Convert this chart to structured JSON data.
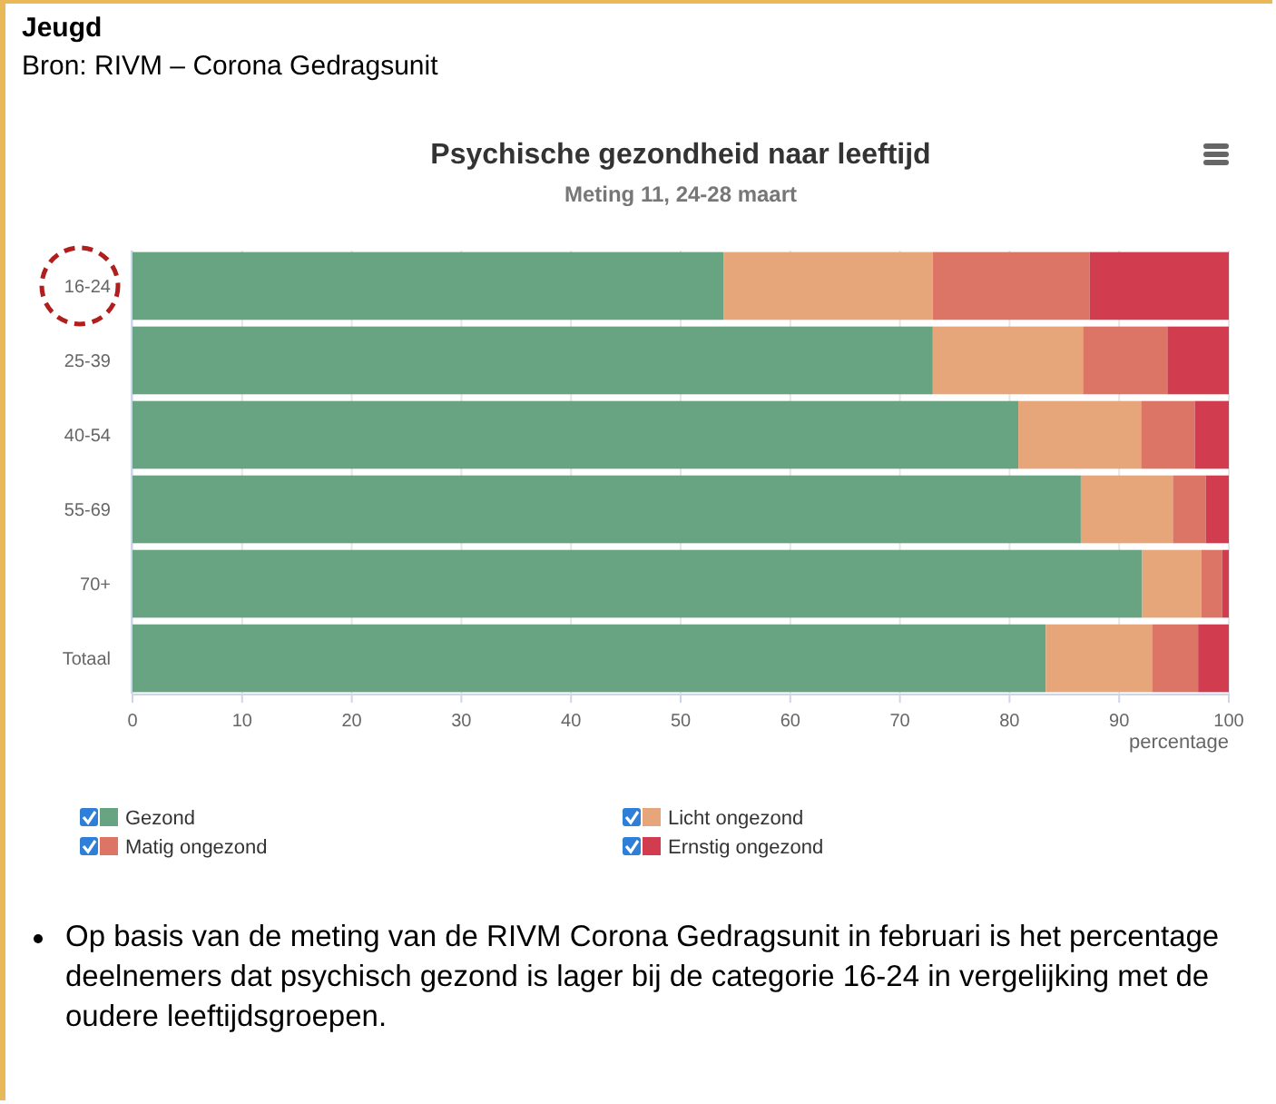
{
  "chart_data": {
    "type": "bar",
    "orientation": "horizontal",
    "stacked": true,
    "title": "Psychische gezondheid naar leeftijd",
    "subtitle": "Meting 11, 24-28 maart",
    "xlabel": "percentage",
    "categories": [
      "16-24",
      "25-39",
      "40-54",
      "55-69",
      "70+",
      "Totaal"
    ],
    "series": [
      {
        "name": "Gezond",
        "color": "#68a382",
        "values": [
          53.9,
          73.0,
          80.8,
          86.5,
          92.1,
          83.3
        ]
      },
      {
        "name": "Licht ongezond",
        "color": "#e6a67a",
        "values": [
          19.1,
          13.7,
          11.2,
          8.4,
          5.4,
          9.7
        ]
      },
      {
        "name": "Matig ongezond",
        "color": "#dc7566",
        "values": [
          14.3,
          7.7,
          4.9,
          3.0,
          1.9,
          4.2
        ]
      },
      {
        "name": "Ernstig ongezond",
        "color": "#d23c4f",
        "values": [
          12.7,
          5.6,
          3.1,
          2.1,
          0.6,
          2.8
        ]
      }
    ],
    "xlim": [
      0,
      100
    ],
    "xticks": [
      0,
      10,
      20,
      30,
      40,
      50,
      60,
      70,
      80,
      90,
      100
    ],
    "grid": "x",
    "legend": "bottom",
    "annotations": [
      "Jeugd",
      "Bron: RIVM – Corona Gedragsunit",
      "Op basis van de meting van de RIVM Corona Gedragsunit in februari is het percentage deelnemers dat psychisch gezond is lager bij de categorie 16-24 in vergelijking met de oudere leeftijdsgroepen."
    ]
  }
}
